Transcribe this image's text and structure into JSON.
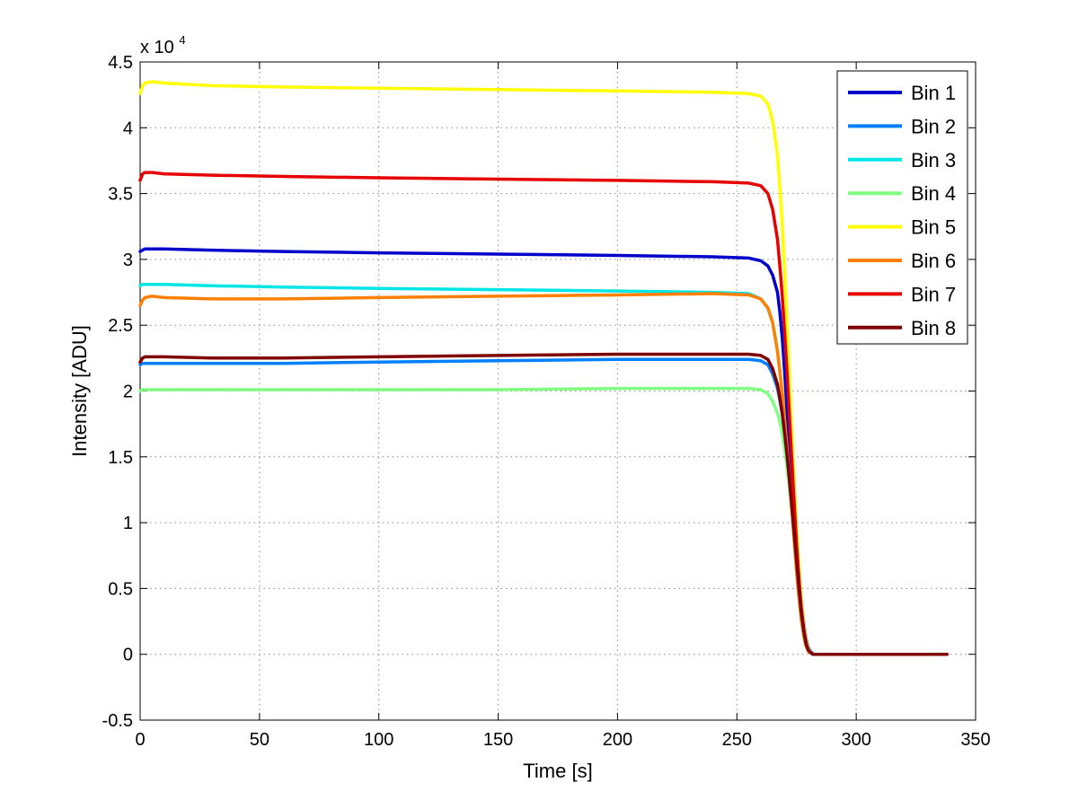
{
  "chart_data": {
    "type": "line",
    "title": "",
    "xlabel": "Time [s]",
    "ylabel": "Intensity [ADU]",
    "y_exponent": {
      "prefix": "x 10",
      "power": "4"
    },
    "xlim": [
      0,
      350
    ],
    "ylim": [
      -0.5,
      4.5
    ],
    "grid": true,
    "legend_position": "top-right",
    "x_ticks": [
      0,
      50,
      100,
      150,
      200,
      250,
      300,
      350
    ],
    "x_tick_labels": [
      "0",
      "50",
      "100",
      "150",
      "200",
      "250",
      "300",
      "350"
    ],
    "y_ticks": [
      -0.5,
      0,
      0.5,
      1,
      1.5,
      2,
      2.5,
      3,
      3.5,
      4,
      4.5
    ],
    "y_tick_labels": [
      "-0.5",
      "0",
      "0.5",
      "1",
      "1.5",
      "2",
      "2.5",
      "3",
      "3.5",
      "4",
      "4.5"
    ],
    "x": [
      0,
      1,
      2,
      5,
      10,
      30,
      60,
      100,
      150,
      200,
      240,
      255,
      260,
      263,
      265,
      267,
      268,
      269,
      270,
      271,
      272,
      273,
      274,
      275,
      276,
      277,
      278,
      279,
      280,
      281,
      282,
      285,
      290,
      300,
      320,
      338
    ],
    "series": [
      {
        "name": "Bin 1",
        "color": "#0000cc",
        "values": [
          3.06,
          3.07,
          3.08,
          3.08,
          3.08,
          3.07,
          3.06,
          3.05,
          3.04,
          3.03,
          3.02,
          3.01,
          2.99,
          2.95,
          2.88,
          2.75,
          2.6,
          2.4,
          2.15,
          1.85,
          1.55,
          1.25,
          0.95,
          0.7,
          0.48,
          0.3,
          0.16,
          0.07,
          0.03,
          0.01,
          0.0,
          0.0,
          0.0,
          0.0,
          0.0,
          0.0
        ]
      },
      {
        "name": "Bin 2",
        "color": "#0080ff",
        "values": [
          2.2,
          2.21,
          2.21,
          2.21,
          2.21,
          2.21,
          2.21,
          2.22,
          2.23,
          2.24,
          2.24,
          2.24,
          2.23,
          2.2,
          2.13,
          2.02,
          1.93,
          1.82,
          1.68,
          1.52,
          1.35,
          1.17,
          0.98,
          0.78,
          0.58,
          0.4,
          0.24,
          0.12,
          0.05,
          0.02,
          0.0,
          0.0,
          0.0,
          0.0,
          0.0,
          0.0
        ]
      },
      {
        "name": "Bin 3",
        "color": "#00e5e5",
        "values": [
          2.8,
          2.81,
          2.81,
          2.81,
          2.81,
          2.8,
          2.79,
          2.78,
          2.77,
          2.76,
          2.75,
          2.74,
          2.7,
          2.63,
          2.52,
          2.3,
          2.15,
          1.98,
          1.78,
          1.56,
          1.33,
          1.1,
          0.86,
          0.63,
          0.43,
          0.26,
          0.14,
          0.06,
          0.02,
          0.01,
          0.0,
          0.0,
          0.0,
          0.0,
          0.0,
          0.0
        ]
      },
      {
        "name": "Bin 4",
        "color": "#80ff80",
        "values": [
          2.0,
          2.01,
          2.01,
          2.01,
          2.01,
          2.01,
          2.01,
          2.01,
          2.01,
          2.02,
          2.02,
          2.02,
          2.01,
          1.98,
          1.92,
          1.83,
          1.77,
          1.68,
          1.56,
          1.42,
          1.26,
          1.08,
          0.89,
          0.69,
          0.5,
          0.33,
          0.19,
          0.09,
          0.04,
          0.01,
          0.0,
          0.0,
          0.0,
          0.0,
          0.0,
          0.0
        ]
      },
      {
        "name": "Bin 5",
        "color": "#ffff00",
        "values": [
          4.26,
          4.32,
          4.34,
          4.35,
          4.34,
          4.32,
          4.31,
          4.3,
          4.29,
          4.28,
          4.27,
          4.26,
          4.24,
          4.18,
          4.05,
          3.8,
          3.55,
          3.25,
          2.9,
          2.5,
          2.1,
          1.7,
          1.3,
          0.95,
          0.65,
          0.4,
          0.22,
          0.1,
          0.04,
          0.01,
          0.0,
          0.0,
          0.0,
          0.0,
          0.0,
          0.0
        ]
      },
      {
        "name": "Bin 6",
        "color": "#ff8000",
        "values": [
          2.65,
          2.69,
          2.71,
          2.72,
          2.71,
          2.7,
          2.7,
          2.71,
          2.72,
          2.73,
          2.74,
          2.73,
          2.7,
          2.63,
          2.52,
          2.3,
          2.15,
          1.98,
          1.78,
          1.56,
          1.33,
          1.1,
          0.86,
          0.63,
          0.43,
          0.26,
          0.14,
          0.06,
          0.02,
          0.01,
          0.0,
          0.0,
          0.0,
          0.0,
          0.0,
          0.0
        ]
      },
      {
        "name": "Bin 7",
        "color": "#e60000",
        "values": [
          3.6,
          3.65,
          3.66,
          3.66,
          3.65,
          3.64,
          3.63,
          3.62,
          3.61,
          3.6,
          3.59,
          3.58,
          3.56,
          3.5,
          3.38,
          3.15,
          2.95,
          2.72,
          2.45,
          2.15,
          1.82,
          1.48,
          1.15,
          0.84,
          0.57,
          0.35,
          0.19,
          0.08,
          0.03,
          0.01,
          0.0,
          0.0,
          0.0,
          0.0,
          0.0,
          0.0
        ]
      },
      {
        "name": "Bin 8",
        "color": "#800000",
        "values": [
          2.22,
          2.25,
          2.26,
          2.26,
          2.26,
          2.25,
          2.25,
          2.26,
          2.27,
          2.28,
          2.28,
          2.28,
          2.27,
          2.24,
          2.17,
          2.05,
          1.95,
          1.83,
          1.68,
          1.51,
          1.33,
          1.13,
          0.92,
          0.71,
          0.5,
          0.32,
          0.18,
          0.08,
          0.03,
          0.01,
          0.0,
          0.0,
          0.0,
          0.0,
          0.0,
          0.0
        ]
      }
    ]
  }
}
